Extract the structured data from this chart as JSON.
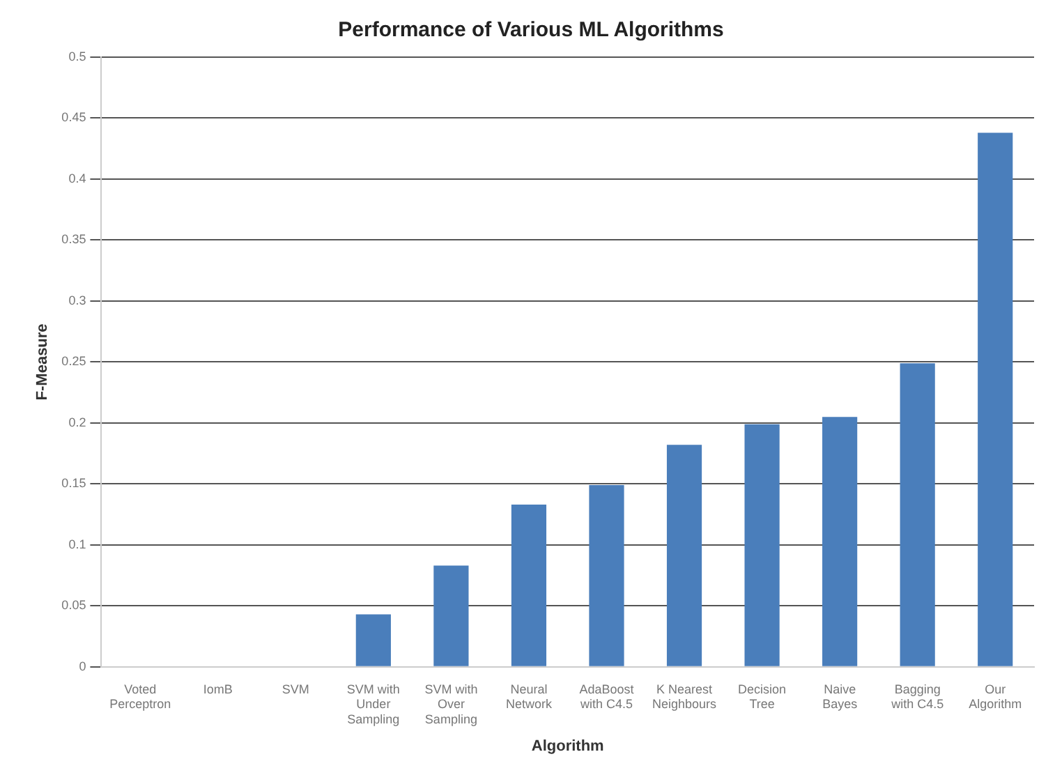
{
  "chart_data": {
    "type": "bar",
    "title": "Performance of Various ML Algorithms",
    "xlabel": "Algorithm",
    "ylabel": "F-Measure",
    "categories": [
      "Voted Perceptron",
      "IomB",
      "SVM",
      "SVM with Under Sampling",
      "SVM with Over Sampling",
      "Neural Network",
      "AdaBoost with C4.5",
      "K Nearest Neighbours",
      "Decision Tree",
      "Naive Bayes",
      "Bagging with C4.5",
      "Our Algorithm"
    ],
    "values": [
      0,
      0,
      0,
      0.043,
      0.083,
      0.133,
      0.149,
      0.182,
      0.199,
      0.205,
      0.249,
      0.438
    ],
    "color": "#4a7ebb",
    "ylim": [
      0,
      0.5
    ],
    "yticks": [
      0,
      0.05,
      0.1,
      0.15,
      0.2,
      0.25,
      0.3,
      0.35,
      0.4,
      0.45,
      0.5
    ],
    "grid": "y",
    "legend": false
  }
}
